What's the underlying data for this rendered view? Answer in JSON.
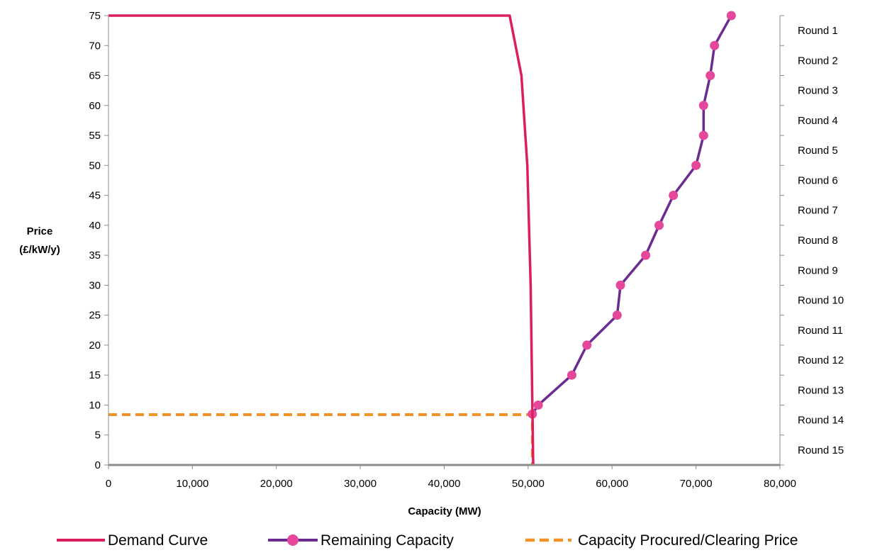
{
  "chart_data": {
    "type": "line",
    "xlabel": "Capacity (MW)",
    "ylabel_line1": "Price",
    "ylabel_line2": "(£/kW/y)",
    "xlim": [
      0,
      80000
    ],
    "ylim": [
      0,
      75
    ],
    "x_ticks": [
      0,
      10000,
      20000,
      30000,
      40000,
      50000,
      60000,
      70000,
      80000
    ],
    "x_tick_labels": [
      "0",
      "10,000",
      "20,000",
      "30,000",
      "40,000",
      "50,000",
      "60,000",
      "70,000",
      "80,000"
    ],
    "y_ticks": [
      0,
      5,
      10,
      15,
      20,
      25,
      30,
      35,
      40,
      45,
      50,
      55,
      60,
      65,
      70,
      75
    ],
    "y_tick_labels": [
      "0",
      "5",
      "10",
      "15",
      "20",
      "25",
      "30",
      "35",
      "40",
      "45",
      "50",
      "55",
      "60",
      "65",
      "70",
      "75"
    ],
    "secondary_axis_labels": [
      "Round 1",
      "Round 2",
      "Round 3",
      "Round 4",
      "Round 5",
      "Round 6",
      "Round 7",
      "Round 8",
      "Round 9",
      "Round 10",
      "Round 11",
      "Round 12",
      "Round 13",
      "Round 14",
      "Round 15"
    ],
    "grid": false,
    "legend_position": "bottom",
    "series": [
      {
        "name": "Demand Curve",
        "color": "#DC1E5A",
        "style": "solid",
        "markers": false,
        "points": [
          [
            0,
            75
          ],
          [
            47800,
            75
          ],
          [
            49200,
            65
          ],
          [
            49900,
            50
          ],
          [
            50300,
            30
          ],
          [
            50500,
            10
          ],
          [
            50600,
            0
          ]
        ]
      },
      {
        "name": "Remaining Capacity",
        "color": "#6A2C91",
        "marker_color": "#E5489A",
        "style": "solid",
        "markers": true,
        "points": [
          [
            74200,
            75
          ],
          [
            72200,
            70
          ],
          [
            71700,
            65
          ],
          [
            70900,
            60
          ],
          [
            70900,
            55
          ],
          [
            70000,
            50
          ],
          [
            67300,
            45
          ],
          [
            65600,
            40
          ],
          [
            64000,
            35
          ],
          [
            61000,
            30
          ],
          [
            60600,
            25
          ],
          [
            57000,
            20
          ],
          [
            55200,
            15
          ],
          [
            51200,
            10
          ],
          [
            50500,
            8.5
          ]
        ]
      },
      {
        "name": "Capacity Procured/Clearing Price",
        "color": "#F39226",
        "style": "dashed",
        "markers": false,
        "points": [
          [
            0,
            8.4
          ],
          [
            50500,
            8.4
          ],
          [
            50500,
            0
          ]
        ]
      }
    ]
  }
}
